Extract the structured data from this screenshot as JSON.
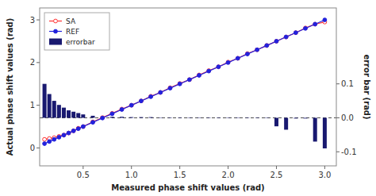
{
  "chart_data": {
    "type": "line",
    "x": [
      0.1,
      0.15,
      0.2,
      0.25,
      0.3,
      0.35,
      0.4,
      0.45,
      0.5,
      0.6,
      0.7,
      0.8,
      0.9,
      1.0,
      1.1,
      1.2,
      1.3,
      1.4,
      1.5,
      1.6,
      1.7,
      1.8,
      1.9,
      2.0,
      2.1,
      2.2,
      2.3,
      2.4,
      2.5,
      2.6,
      2.7,
      2.8,
      2.9,
      3.0
    ],
    "series": [
      {
        "name": "SA",
        "type": "line",
        "axis": "y",
        "color": "#ff3333",
        "marker": "circle-open",
        "line_style": "solid",
        "values": [
          0.2,
          0.22,
          0.24,
          0.27,
          0.3,
          0.35,
          0.4,
          0.46,
          0.5,
          0.61,
          0.71,
          0.81,
          0.91,
          1.0,
          1.1,
          1.21,
          1.3,
          1.41,
          1.51,
          1.6,
          1.71,
          1.81,
          1.9,
          2.01,
          2.1,
          2.21,
          2.3,
          2.4,
          2.5,
          2.6,
          2.7,
          2.81,
          2.9,
          2.95
        ]
      },
      {
        "name": "REF",
        "type": "line",
        "axis": "y",
        "color": "#2222dd",
        "marker": "circle",
        "line_style": "solid",
        "values": [
          0.1,
          0.15,
          0.2,
          0.25,
          0.3,
          0.35,
          0.4,
          0.45,
          0.5,
          0.6,
          0.7,
          0.8,
          0.9,
          1.0,
          1.1,
          1.2,
          1.3,
          1.4,
          1.5,
          1.6,
          1.7,
          1.8,
          1.9,
          2.0,
          2.1,
          2.2,
          2.3,
          2.4,
          2.5,
          2.6,
          2.7,
          2.8,
          2.9,
          3.0
        ]
      },
      {
        "name": "errorbar",
        "type": "bar",
        "axis": "y2",
        "color": "#191970",
        "values": [
          0.1,
          0.07,
          0.05,
          0.038,
          0.03,
          0.022,
          0.018,
          0.014,
          0.01,
          0.006,
          0.004,
          0.003,
          0.003,
          0.002,
          0.002,
          0.002,
          0.001,
          0.001,
          0.001,
          0.001,
          0.001,
          0.001,
          0.001,
          0.001,
          0.001,
          0.001,
          0.001,
          0.001,
          -0.025,
          -0.035,
          -0.002,
          -0.002,
          -0.07,
          -0.09
        ]
      }
    ],
    "xlabel": "Measured phase shift values (rad)",
    "ylabel": "Actual phase shift values (rad)",
    "y2label": "error bar (rad)",
    "xlim": [
      0.05,
      3.12
    ],
    "xticks": [
      0.5,
      {
        "value": 1.0,
        "label": "1.0"
      },
      1.5,
      {
        "value": 2.0,
        "label": "2.0"
      },
      2.5,
      {
        "value": 3.0,
        "label": "3.0"
      }
    ],
    "ylim": [
      -0.42,
      3.28
    ],
    "yticks": [
      0,
      1,
      2,
      3
    ],
    "y2lim": [
      -0.14143243243243242,
      0.32356756756756755
    ],
    "y2ticks": [
      -0.1,
      {
        "value": 0.0,
        "label": "0.0"
      },
      0.1
    ],
    "legend": "upper left",
    "grid": false
  }
}
